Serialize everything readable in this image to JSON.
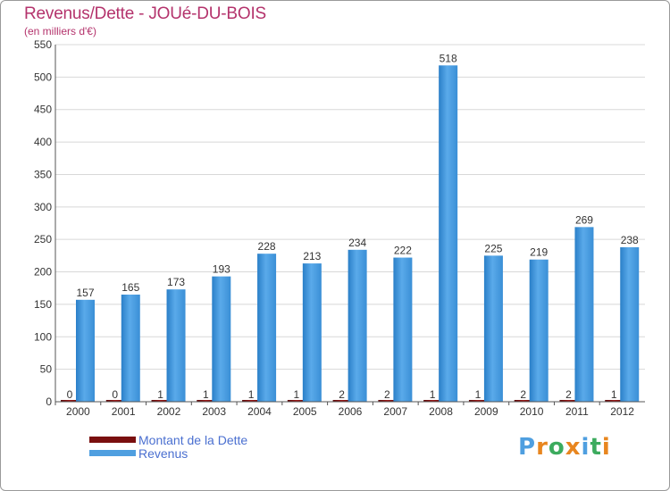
{
  "chart_data": {
    "type": "bar",
    "title": "Revenus/Dette - JOUé-DU-BOIS",
    "subtitle": "(en milliers d'€)",
    "categories": [
      "2000",
      "2001",
      "2002",
      "2003",
      "2004",
      "2005",
      "2006",
      "2007",
      "2008",
      "2009",
      "2010",
      "2011",
      "2012"
    ],
    "ylim": [
      0,
      550
    ],
    "yticks": [
      0,
      50,
      100,
      150,
      200,
      250,
      300,
      350,
      400,
      450,
      500,
      550
    ],
    "grid": true,
    "legend_position": "bottom-left",
    "series": [
      {
        "name": "Montant de la Dette",
        "color": "#7a0f0f",
        "values": [
          0,
          0,
          1,
          1,
          1,
          1,
          2,
          2,
          1,
          1,
          2,
          2,
          1
        ]
      },
      {
        "name": "Revenus",
        "color": "#4f9fe0",
        "values": [
          157,
          165,
          173,
          193,
          228,
          213,
          234,
          222,
          518,
          225,
          219,
          269,
          238
        ]
      }
    ]
  },
  "logo": {
    "text": "Proxiti",
    "letter_colors": [
      "#4f9fe0",
      "#e8861f",
      "#3cab5e",
      "#e8861f",
      "#4f9fe0",
      "#3cab5e",
      "#e8861f"
    ]
  }
}
